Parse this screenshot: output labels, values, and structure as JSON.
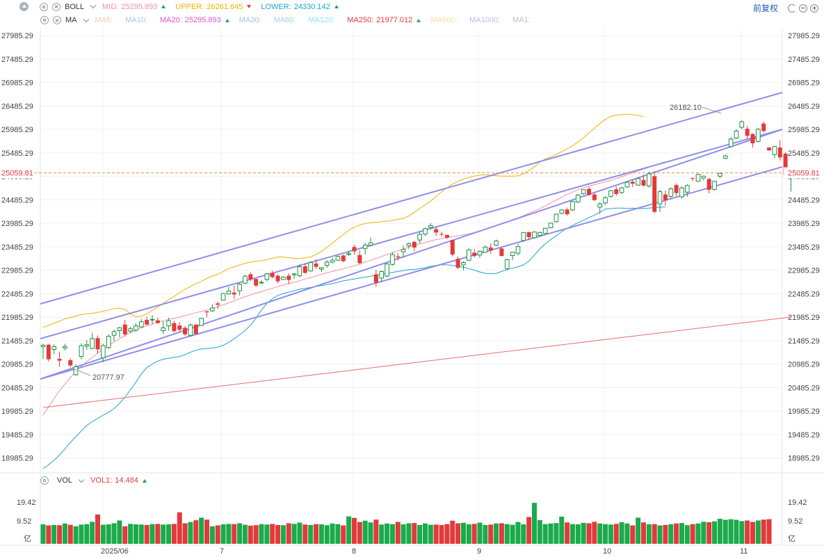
{
  "boll": {
    "name": "BOLL",
    "mid_label": "MID:",
    "mid_value": "25295.893",
    "mid_color": "#f28fa6",
    "upper_label": "UPPER:",
    "upper_value": "26261.645",
    "upper_color": "#f0b100",
    "lower_label": "LOWER:",
    "lower_value": "24330.142",
    "lower_color": "#1fa3cf"
  },
  "ma": {
    "name": "MA",
    "items": [
      {
        "label": "MA5:",
        "value": "",
        "color": "#f7c9a0"
      },
      {
        "label": "MA10:",
        "value": "",
        "color": "#a8c8e8"
      },
      {
        "label": "MA20:",
        "value": "25295.893",
        "color": "#d957c8",
        "arrow": "up"
      },
      {
        "label": "MA30:",
        "value": "",
        "color": "#a8c0e0"
      },
      {
        "label": "MA60:",
        "value": "",
        "color": "#9fd0e8"
      },
      {
        "label": "MA120:",
        "value": "",
        "color": "#8fdff0"
      },
      {
        "label": "MA250:",
        "value": "21977.012",
        "color": "#e23a3a",
        "arrow": "up"
      },
      {
        "label": "MA500:",
        "value": "",
        "color": "#f4dfa0"
      },
      {
        "label": "MA1000:",
        "value": "",
        "color": "#c8b8e8"
      },
      {
        "label": "MA1:",
        "value": "",
        "color": "#c0c0c0"
      }
    ]
  },
  "vol": {
    "name": "VOL",
    "vol1_label": "VOL1:",
    "vol1_value": "14.484",
    "vol1_color": "#e23a3a"
  },
  "controls": {
    "adjust_label": "前复权"
  },
  "price_axis": [
    "27985.29",
    "27485.29",
    "26985.29",
    "26485.29",
    "25985.29",
    "25485.29",
    "24985.29",
    "24485.29",
    "23985.29",
    "23485.29",
    "22985.29",
    "22485.29",
    "21985.29",
    "21485.29",
    "20985.29",
    "20485.29",
    "19985.29",
    "19485.29",
    "18985.29"
  ],
  "vol_axis": [
    "19.42",
    "9.52",
    "亿"
  ],
  "last_price": "25059.81",
  "annotations": {
    "high": "26182.10",
    "low": "20777.97"
  },
  "x_labels": [
    "2025/06",
    "7",
    "8",
    "9",
    "10",
    "11"
  ],
  "chart_data": {
    "type": "candlestick",
    "ylim": [
      18700,
      28150
    ],
    "vol_ylim": [
      0,
      19.42
    ],
    "candles": [
      [
        21360,
        21420,
        21100,
        21390
      ],
      [
        21400,
        21420,
        21040,
        21090
      ],
      [
        21300,
        21410,
        21200,
        21360
      ],
      [
        21100,
        21250,
        20930,
        21060
      ],
      [
        21330,
        21420,
        21280,
        21360
      ],
      [
        21070,
        21110,
        20920,
        20960
      ],
      [
        20760,
        20980,
        20740,
        20930
      ],
      [
        21150,
        21430,
        21090,
        21380
      ],
      [
        21370,
        21500,
        21290,
        21400
      ],
      [
        21320,
        21650,
        21300,
        21530
      ],
      [
        21540,
        21600,
        21210,
        21300
      ],
      [
        21120,
        21420,
        21030,
        21380
      ],
      [
        21340,
        21620,
        21300,
        21580
      ],
      [
        21600,
        21720,
        21480,
        21680
      ],
      [
        21700,
        21780,
        21560,
        21760
      ],
      [
        21830,
        21930,
        21570,
        21620
      ],
      [
        21690,
        21780,
        21640,
        21740
      ],
      [
        21710,
        21860,
        21670,
        21800
      ],
      [
        21780,
        21950,
        21760,
        21890
      ],
      [
        21930,
        22000,
        21810,
        21830
      ],
      [
        21930,
        22030,
        21830,
        21940
      ],
      [
        21920,
        21980,
        21850,
        21860
      ],
      [
        21700,
        21900,
        21630,
        21760
      ],
      [
        21800,
        21970,
        21700,
        21910
      ],
      [
        21860,
        21910,
        21660,
        21690
      ],
      [
        21810,
        21880,
        21680,
        21720
      ],
      [
        21760,
        21800,
        21590,
        21620
      ],
      [
        21600,
        21850,
        21570,
        21820
      ],
      [
        21830,
        21820,
        21610,
        21630
      ],
      [
        21810,
        21970,
        21800,
        21960
      ],
      [
        22110,
        22120,
        21990,
        22090
      ],
      [
        22120,
        22260,
        22100,
        22180
      ],
      [
        22280,
        22310,
        22160,
        22250
      ],
      [
        22350,
        22500,
        22340,
        22490
      ],
      [
        22480,
        22630,
        22470,
        22540
      ],
      [
        22510,
        22660,
        22370,
        22470
      ],
      [
        22550,
        22710,
        22450,
        22690
      ],
      [
        22710,
        22890,
        22690,
        22860
      ],
      [
        22900,
        22950,
        22760,
        22790
      ],
      [
        22800,
        22800,
        22630,
        22660
      ],
      [
        22720,
        22780,
        22690,
        22730
      ],
      [
        22790,
        22930,
        22750,
        22910
      ],
      [
        22930,
        22980,
        22810,
        22840
      ],
      [
        22870,
        22900,
        22710,
        22750
      ],
      [
        22790,
        22860,
        22780,
        22840
      ],
      [
        22870,
        22920,
        22690,
        22780
      ],
      [
        22890,
        22920,
        22800,
        22910
      ],
      [
        22870,
        23120,
        22830,
        23060
      ],
      [
        23070,
        23140,
        22910,
        22930
      ],
      [
        22970,
        23180,
        22960,
        23150
      ],
      [
        23130,
        23220,
        23010,
        23060
      ],
      [
        23010,
        23050,
        22950,
        23040
      ],
      [
        23090,
        23200,
        23040,
        23160
      ],
      [
        23160,
        23250,
        23130,
        23200
      ],
      [
        23200,
        23300,
        23190,
        23280
      ],
      [
        23300,
        23320,
        23160,
        23180
      ],
      [
        23320,
        23400,
        23290,
        23340
      ],
      [
        23480,
        23530,
        23320,
        23390
      ],
      [
        23310,
        23410,
        23110,
        23140
      ],
      [
        23450,
        23570,
        23320,
        23520
      ],
      [
        23520,
        23680,
        23500,
        23570
      ],
      [
        22900,
        23000,
        22630,
        22720
      ],
      [
        22820,
        22980,
        22740,
        22960
      ],
      [
        22860,
        23140,
        22840,
        23120
      ],
      [
        23110,
        23370,
        23080,
        23320
      ],
      [
        23280,
        23350,
        23200,
        23260
      ],
      [
        23380,
        23510,
        23260,
        23430
      ],
      [
        23510,
        23580,
        23440,
        23550
      ],
      [
        23590,
        23610,
        23390,
        23470
      ],
      [
        23630,
        23800,
        23560,
        23750
      ],
      [
        23760,
        23900,
        23720,
        23870
      ],
      [
        23900,
        23990,
        23860,
        23940
      ],
      [
        23860,
        23920,
        23710,
        23790
      ],
      [
        23760,
        23810,
        23700,
        23750
      ],
      [
        23740,
        23720,
        23650,
        23680
      ],
      [
        23630,
        23630,
        23280,
        23320
      ],
      [
        23230,
        23280,
        23010,
        23040
      ],
      [
        23100,
        23180,
        22990,
        23150
      ],
      [
        23200,
        23450,
        23180,
        23420
      ],
      [
        23360,
        23440,
        23260,
        23290
      ],
      [
        23310,
        23410,
        23250,
        23390
      ],
      [
        23370,
        23510,
        23360,
        23480
      ],
      [
        23470,
        23560,
        23340,
        23410
      ],
      [
        23520,
        23640,
        23500,
        23610
      ],
      [
        23450,
        23470,
        23280,
        23290
      ],
      [
        23020,
        23230,
        22990,
        23210
      ],
      [
        23300,
        23380,
        23200,
        23370
      ],
      [
        23350,
        23550,
        23300,
        23490
      ],
      [
        23620,
        23800,
        23590,
        23790
      ],
      [
        23800,
        23800,
        23630,
        23690
      ],
      [
        23680,
        23820,
        23660,
        23800
      ],
      [
        23730,
        23810,
        23710,
        23790
      ],
      [
        23770,
        23890,
        23750,
        23880
      ],
      [
        23890,
        24000,
        23880,
        23990
      ],
      [
        24020,
        24190,
        24000,
        24180
      ],
      [
        24200,
        24290,
        24180,
        24270
      ],
      [
        24280,
        24320,
        24150,
        24180
      ],
      [
        24270,
        24460,
        24250,
        24450
      ],
      [
        24440,
        24610,
        24420,
        24590
      ],
      [
        24620,
        24710,
        24590,
        24700
      ],
      [
        24720,
        24760,
        24580,
        24590
      ],
      [
        24600,
        24630,
        24460,
        24480
      ],
      [
        24330,
        24440,
        24190,
        24400
      ],
      [
        24420,
        24560,
        24380,
        24530
      ],
      [
        24560,
        24700,
        24530,
        24680
      ],
      [
        24710,
        24770,
        24570,
        24610
      ],
      [
        24640,
        24760,
        24610,
        24740
      ],
      [
        24760,
        24880,
        24740,
        24860
      ],
      [
        24870,
        24920,
        24760,
        24830
      ],
      [
        24800,
        24960,
        24790,
        24940
      ],
      [
        24910,
        25020,
        24770,
        24790
      ],
      [
        24780,
        25090,
        24750,
        25040
      ],
      [
        24990,
        25100,
        24200,
        24230
      ],
      [
        24400,
        24700,
        24230,
        24660
      ],
      [
        24600,
        24690,
        24360,
        24480
      ],
      [
        24560,
        24750,
        24520,
        24720
      ],
      [
        24800,
        24830,
        24560,
        24630
      ],
      [
        24550,
        24780,
        24510,
        24740
      ],
      [
        24650,
        24820,
        24550,
        24790
      ],
      [
        24950,
        24960,
        24880,
        24940
      ],
      [
        24880,
        25040,
        24870,
        25030
      ],
      [
        24950,
        25000,
        24900,
        24990
      ],
      [
        24930,
        24960,
        24620,
        24700
      ],
      [
        24710,
        24890,
        24680,
        24880
      ],
      [
        24990,
        25060,
        24950,
        25050
      ],
      [
        25370,
        25450,
        25350,
        25420
      ],
      [
        25620,
        25820,
        25600,
        25780
      ],
      [
        25800,
        25990,
        25780,
        25950
      ],
      [
        26030,
        26180,
        25990,
        26150
      ],
      [
        26000,
        26060,
        25780,
        25850
      ],
      [
        25890,
        25900,
        25600,
        25690
      ],
      [
        25730,
        26020,
        25710,
        25990
      ],
      [
        26110,
        26150,
        25920,
        25950
      ],
      [
        25600,
        25610,
        25530,
        25540
      ],
      [
        25450,
        25640,
        25380,
        25620
      ],
      [
        25600,
        25760,
        25320,
        25390
      ],
      [
        25470,
        25500,
        24950,
        25010
      ],
      [
        25010,
        25100,
        24660,
        25080
      ]
    ],
    "volume": [
      9.7,
      9.2,
      9.4,
      9.3,
      10.1,
      9.5,
      8.8,
      9.6,
      9.8,
      10.9,
      14.3,
      9.5,
      9.7,
      10.2,
      11.5,
      8.8,
      9.9,
      9.7,
      9.6,
      9.4,
      9.8,
      9.9,
      9.6,
      9.7,
      9.9,
      15.3,
      10.2,
      10.8,
      11.6,
      12.8,
      11.9,
      8.8,
      9.2,
      9.7,
      9.9,
      9.8,
      10.2,
      9.5,
      9.1,
      9.3,
      9.8,
      9.6,
      9.9,
      9.4,
      9.3,
      10.2,
      9.9,
      10.5,
      9.6,
      9.4,
      9.8,
      9.7,
      9.3,
      10.1,
      9.8,
      9.2,
      13.4,
      12.7,
      10.8,
      11.4,
      10.6,
      11.9,
      9.6,
      10.1,
      9.8,
      10.8,
      9.7,
      10.2,
      10.3,
      9.4,
      10.1,
      9.5,
      9.6,
      9.4,
      9.8,
      11.4,
      10.2,
      10.4,
      9.7,
      9.9,
      10.5,
      9.4,
      9.6,
      10.1,
      10.2,
      9.8,
      9.5,
      10.8,
      9.7,
      13.1,
      19.7,
      11.7,
      9.8,
      10.1,
      10.3,
      13.3,
      10.6,
      9.8,
      9.7,
      10.4,
      10.2,
      10.9,
      10.1,
      9.8,
      9.6,
      9.9,
      10.7,
      10.1,
      9.2,
      12.8,
      10.6,
      9.7,
      9.8,
      9.2,
      9.4,
      9.7,
      10.1,
      10.3,
      9.3,
      9.8,
      10.1,
      10.9,
      10.7,
      11.1,
      12.3,
      11.8,
      12.1,
      11.8,
      11.2,
      11.5,
      10.8,
      11.5,
      11.9,
      12.1
    ],
    "ma250": [
      20060,
      21990
    ],
    "boll_upper": [
      21770,
      21810,
      21860,
      21900,
      21950,
      21980,
      22010,
      22040,
      22060,
      22070,
      22090,
      22110,
      22140,
      22170,
      22180,
      22150,
      22060,
      21990,
      22010,
      22060,
      22130,
      22200,
      22280,
      22360,
      22430,
      22510,
      22580,
      22640,
      22700,
      22750,
      22810,
      22860,
      22900,
      22960,
      23020,
      23060,
      23100,
      23130,
      23160,
      23180,
      23190,
      23210,
      23240,
      23270,
      23270,
      23250,
      23240,
      23240,
      23250,
      23270,
      23320,
      23390,
      23470,
      23560,
      23660,
      23750,
      23840,
      23900,
      23950,
      23980,
      24000,
      24010,
      24020,
      24030,
      24050,
      24070,
      24090,
      24140,
      24220,
      24300,
      24380,
      24460,
      24560,
      24660,
      24740,
      24820,
      24880,
      24930,
      24960,
      24990,
      25010,
      25020,
      25010,
      25000,
      24990,
      24990,
      24990,
      25000,
      25040,
      25110,
      25190,
      25290,
      25360,
      25400,
      25450,
      25510,
      25570,
      25640,
      25720,
      25810,
      25910,
      26010,
      26110,
      26200,
      26260,
      26290,
      26300,
      26310,
      26300,
      26280,
      26260
    ],
    "boll_mid": [
      19900,
      20070,
      20250,
      20420,
      20560,
      20700,
      20830,
      20940,
      21040,
      21130,
      21220,
      21300,
      21380,
      21460,
      21530,
      21600,
      21660,
      21710,
      21760,
      21800,
      21840,
      21880,
      21910,
      21940,
      21960,
      21990,
      22020,
      22050,
      22080,
      22110,
      22140,
      22180,
      22210,
      22250,
      22290,
      22330,
      22380,
      22420,
      22460,
      22500,
      22530,
      22570,
      22600,
      22640,
      22670,
      22700,
      22730,
      22760,
      22800,
      22830,
      22860,
      22900,
      22930,
      22960,
      22990,
      23020,
      23050,
      23080,
      23120,
      23160,
      23200,
      23240,
      23280,
      23320,
      23360,
      23400,
      23440,
      23480,
      23520,
      23550,
      23580,
      23610,
      23640,
      23660,
      23680,
      23700,
      23720,
      23740,
      23760,
      23790,
      23820,
      23860,
      23900,
      23940,
      23980,
      24020,
      24060,
      24100,
      24150,
      24200,
      24250,
      24300,
      24360,
      24420,
      24480,
      24540,
      24600,
      24650,
      24700,
      24740,
      24780,
      24810,
      24840,
      24870,
      24900,
      24940,
      24980,
      25020,
      25060,
      25100,
      25140,
      25180,
      25220,
      25260,
      25300
    ],
    "boll_lower": [
      18760,
      18840,
      18940,
      19050,
      19180,
      19320,
      19440,
      19560,
      19680,
      19760,
      19830,
      19900,
      19960,
      20040,
      20150,
      20280,
      20440,
      20600,
      20780,
      20910,
      20990,
      21050,
      21090,
      21110,
      21130,
      21150,
      21190,
      21240,
      21280,
      21310,
      21320,
      21330,
      21350,
      21390,
      21450,
      21530,
      21610,
      21700,
      21820,
      21960,
      22140,
      22280,
      22380,
      22450,
      22490,
      22520,
      22550,
      22580,
      22600,
      22620,
      22640,
      22660,
      22680,
      22700,
      22730,
      22760,
      22780,
      22800,
      22820,
      22840,
      22860,
      22880,
      22900,
      22920,
      22940,
      22960,
      22980,
      23000,
      23000,
      23020,
      23040,
      23070,
      23090,
      23100,
      23100,
      23090,
      23070,
      23050,
      23020,
      22990,
      22950,
      22920,
      22910,
      22920,
      22960,
      23000,
      23030,
      23060,
      23100,
      23180,
      23310,
      23440,
      23550,
      23640,
      23720,
      23810,
      23880,
      23940,
      24000,
      24050,
      24110,
      24160,
      24220,
      24290,
      24300,
      24310,
      24310,
      24300,
      24310,
      24300,
      24300,
      24310,
      24320,
      24330,
      24330
    ]
  }
}
